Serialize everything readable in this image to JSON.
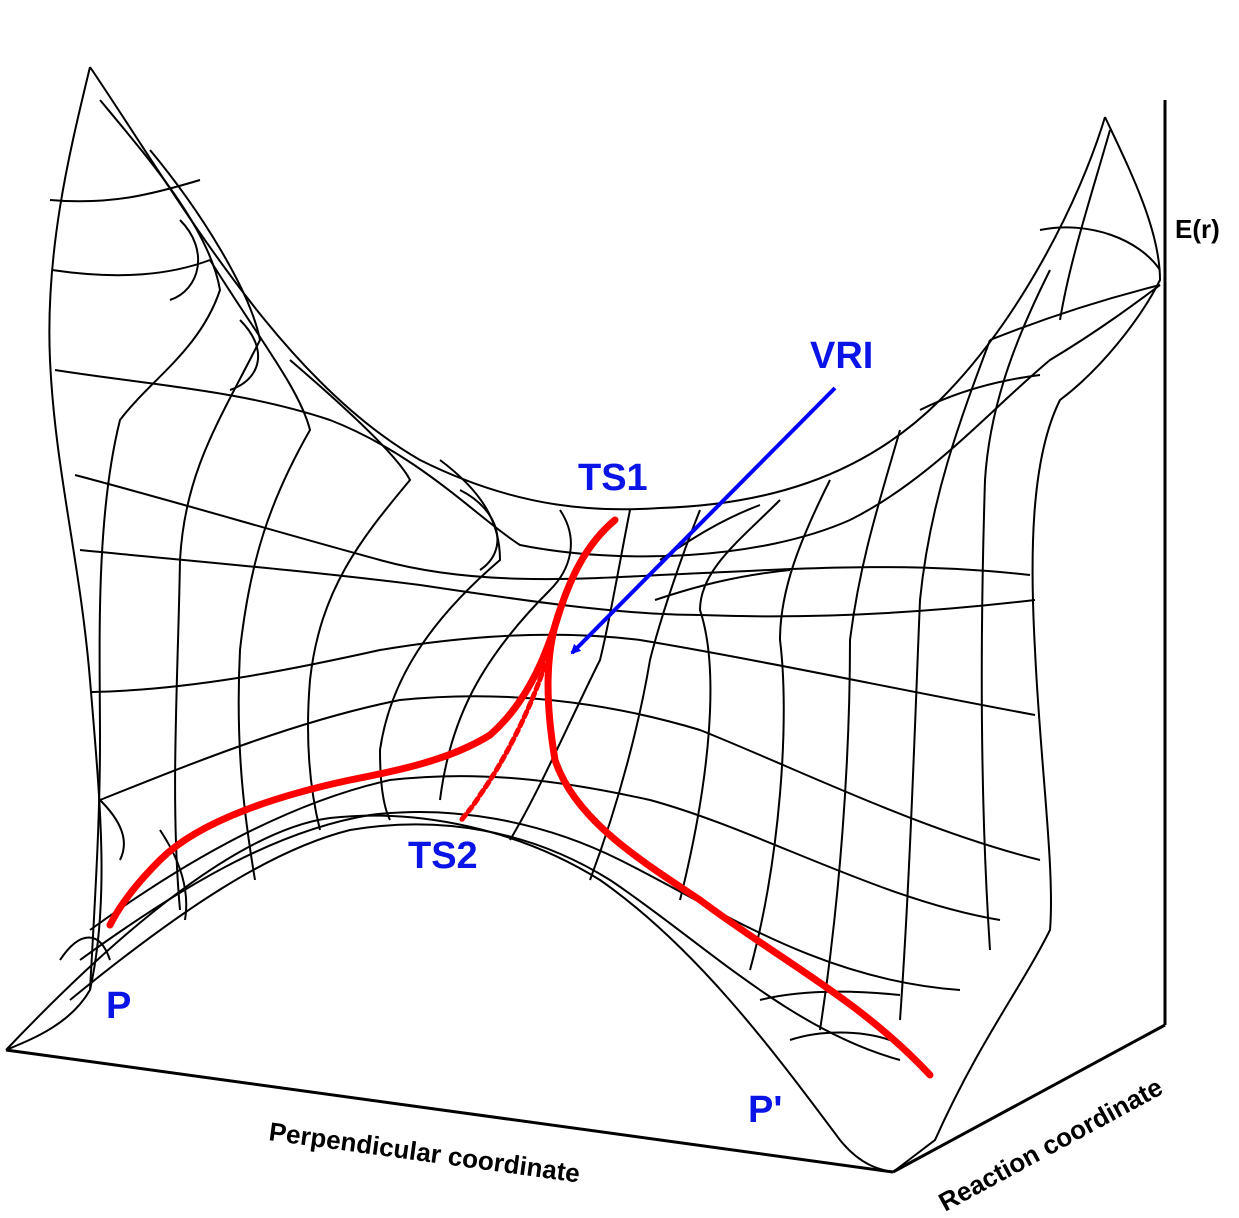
{
  "diagram": {
    "axes": {
      "energy_label": "E(r)",
      "perpendicular_label": "Perpendicular coordinate",
      "reaction_label": "Reaction coordinate"
    },
    "points": {
      "ts1": "TS1",
      "ts2": "TS2",
      "vri": "VRI",
      "p": "P",
      "p_prime": "P'"
    },
    "colors": {
      "label_blue": "#0a14e6",
      "path_red": "#ff0000",
      "arrow_blue": "#0000ff",
      "mesh_black": "#000000"
    }
  }
}
